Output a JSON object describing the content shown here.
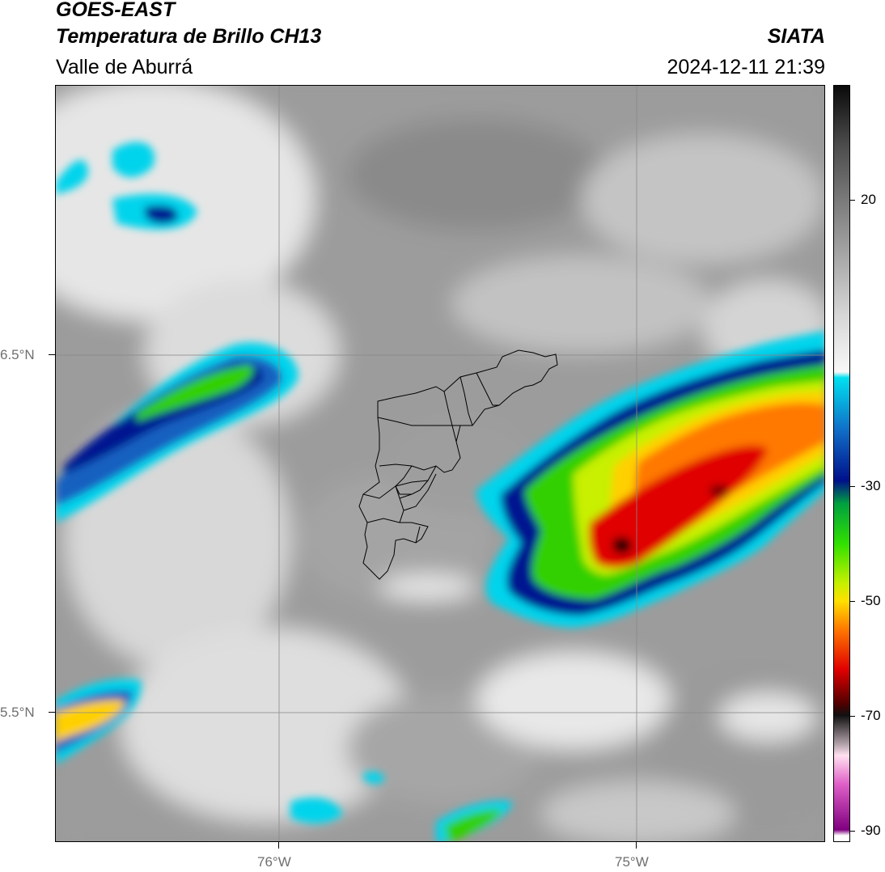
{
  "header": {
    "satellite": "GOES-EAST",
    "product": "Temperatura de Brillo CH13",
    "region": "Valle de Aburrá",
    "agency": "SIATA",
    "datetime": "2024-12-11 21:39"
  },
  "map": {
    "lat_labels": [
      "6.5°N",
      "5.5°N"
    ],
    "lon_labels": [
      "76°W",
      "75°W"
    ]
  },
  "colorbar": {
    "tick_labels": [
      "20",
      "-30",
      "-50",
      "-70",
      "-90"
    ],
    "tick_values": [
      20,
      -30,
      -50,
      -70,
      -90
    ],
    "range": [
      -92,
      40
    ],
    "stops": [
      {
        "value": 40,
        "color": "#0a0a0a"
      },
      {
        "value": 30,
        "color": "#4a4a4a"
      },
      {
        "value": 20,
        "color": "#7a7a7a"
      },
      {
        "value": 10,
        "color": "#a8a8a8"
      },
      {
        "value": 0,
        "color": "#d6d6d6"
      },
      {
        "value": -10,
        "color": "#f8f8f8"
      },
      {
        "value": -11,
        "color": "#00e0f0"
      },
      {
        "value": -20,
        "color": "#1070c8"
      },
      {
        "value": -29,
        "color": "#00108a"
      },
      {
        "value": -33,
        "color": "#00a040"
      },
      {
        "value": -40,
        "color": "#30e000"
      },
      {
        "value": -47,
        "color": "#c8f000"
      },
      {
        "value": -50,
        "color": "#ffe000"
      },
      {
        "value": -55,
        "color": "#ff7800"
      },
      {
        "value": -62,
        "color": "#e00000"
      },
      {
        "value": -68,
        "color": "#500000"
      },
      {
        "value": -70,
        "color": "#101010"
      },
      {
        "value": -75,
        "color": "#b0a0a8"
      },
      {
        "value": -77,
        "color": "#ffe0f0"
      },
      {
        "value": -82,
        "color": "#e060c8"
      },
      {
        "value": -90,
        "color": "#800080"
      },
      {
        "value": -91,
        "color": "#ffffff"
      },
      {
        "value": -92,
        "color": "#ffffff"
      }
    ]
  }
}
